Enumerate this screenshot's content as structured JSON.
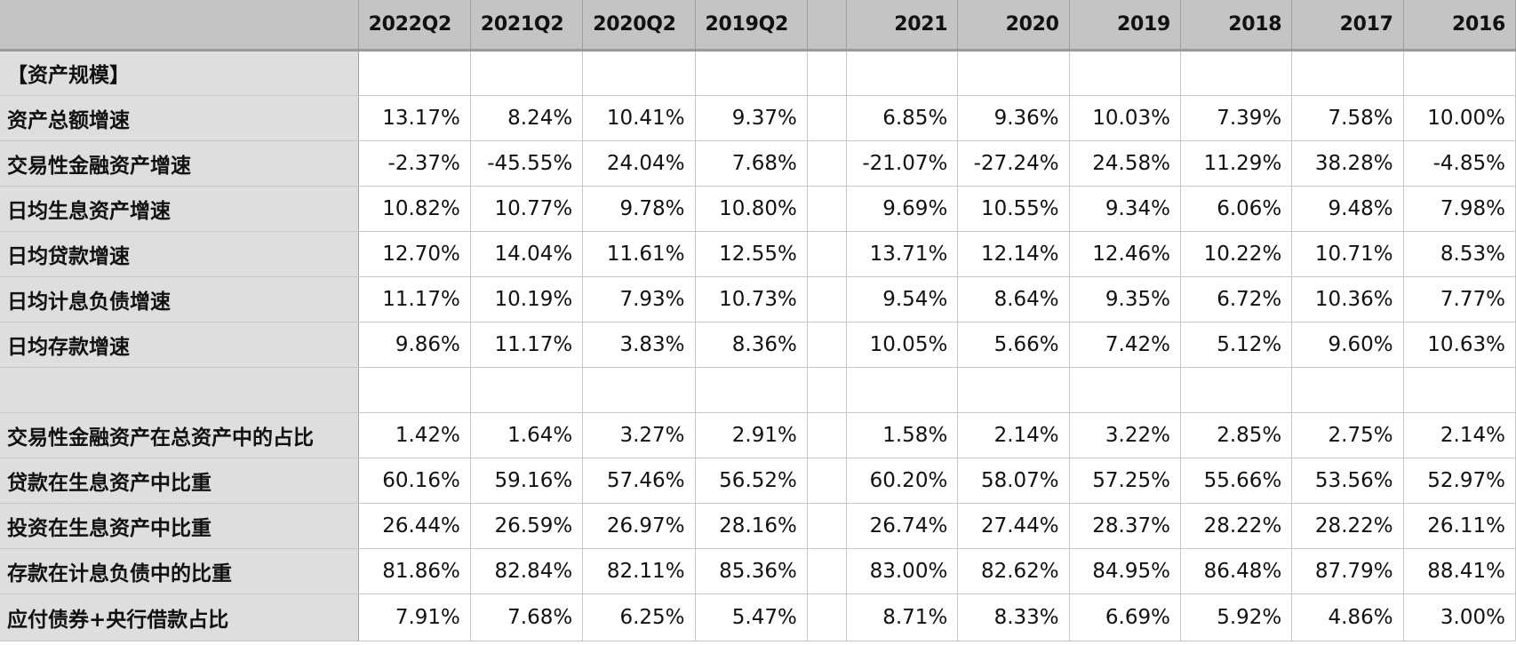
{
  "table": {
    "quarter_headers": [
      "2022Q2",
      "2021Q2",
      "2020Q2",
      "2019Q2"
    ],
    "year_headers": [
      "2021",
      "2020",
      "2019",
      "2018",
      "2017",
      "2016"
    ],
    "rows": [
      {
        "label": "【资产规模】",
        "quarters": [
          "",
          "",
          "",
          ""
        ],
        "years": [
          "",
          "",
          "",
          "",
          "",
          ""
        ]
      },
      {
        "label": "资产总额增速",
        "quarters": [
          "13.17%",
          "8.24%",
          "10.41%",
          "9.37%"
        ],
        "years": [
          "6.85%",
          "9.36%",
          "10.03%",
          "7.39%",
          "7.58%",
          "10.00%"
        ]
      },
      {
        "label": "交易性金融资产增速",
        "quarters": [
          "-2.37%",
          "-45.55%",
          "24.04%",
          "7.68%"
        ],
        "years": [
          "-21.07%",
          "-27.24%",
          "24.58%",
          "11.29%",
          "38.28%",
          "-4.85%"
        ]
      },
      {
        "label": "日均生息资产增速",
        "quarters": [
          "10.82%",
          "10.77%",
          "9.78%",
          "10.80%"
        ],
        "years": [
          "9.69%",
          "10.55%",
          "9.34%",
          "6.06%",
          "9.48%",
          "7.98%"
        ]
      },
      {
        "label": "日均贷款增速",
        "quarters": [
          "12.70%",
          "14.04%",
          "11.61%",
          "12.55%"
        ],
        "years": [
          "13.71%",
          "12.14%",
          "12.46%",
          "10.22%",
          "10.71%",
          "8.53%"
        ]
      },
      {
        "label": "日均计息负债增速",
        "quarters": [
          "11.17%",
          "10.19%",
          "7.93%",
          "10.73%"
        ],
        "years": [
          "9.54%",
          "8.64%",
          "9.35%",
          "6.72%",
          "10.36%",
          "7.77%"
        ]
      },
      {
        "label": "日均存款增速",
        "quarters": [
          "9.86%",
          "11.17%",
          "3.83%",
          "8.36%"
        ],
        "years": [
          "10.05%",
          "5.66%",
          "7.42%",
          "5.12%",
          "9.60%",
          "10.63%"
        ]
      },
      {
        "label": "",
        "quarters": [
          "",
          "",
          "",
          ""
        ],
        "years": [
          "",
          "",
          "",
          "",
          "",
          ""
        ]
      },
      {
        "label": "交易性金融资产在总资产中的占比",
        "quarters": [
          "1.42%",
          "1.64%",
          "3.27%",
          "2.91%"
        ],
        "years": [
          "1.58%",
          "2.14%",
          "3.22%",
          "2.85%",
          "2.75%",
          "2.14%"
        ]
      },
      {
        "label": "贷款在生息资产中比重",
        "quarters": [
          "60.16%",
          "59.16%",
          "57.46%",
          "56.52%"
        ],
        "years": [
          "60.20%",
          "58.07%",
          "57.25%",
          "55.66%",
          "53.56%",
          "52.97%"
        ]
      },
      {
        "label": "投资在生息资产中比重",
        "quarters": [
          "26.44%",
          "26.59%",
          "26.97%",
          "28.16%"
        ],
        "years": [
          "26.74%",
          "27.44%",
          "28.37%",
          "28.22%",
          "28.22%",
          "26.11%"
        ]
      },
      {
        "label": "存款在计息负债中的比重",
        "quarters": [
          "81.86%",
          "82.84%",
          "82.11%",
          "85.36%"
        ],
        "years": [
          "83.00%",
          "82.62%",
          "84.95%",
          "86.48%",
          "87.79%",
          "88.41%"
        ]
      },
      {
        "label": "应付债券+央行借款占比",
        "quarters": [
          "7.91%",
          "7.68%",
          "6.25%",
          "5.47%"
        ],
        "years": [
          "8.71%",
          "8.33%",
          "6.69%",
          "5.92%",
          "4.86%",
          "3.00%"
        ]
      }
    ]
  }
}
